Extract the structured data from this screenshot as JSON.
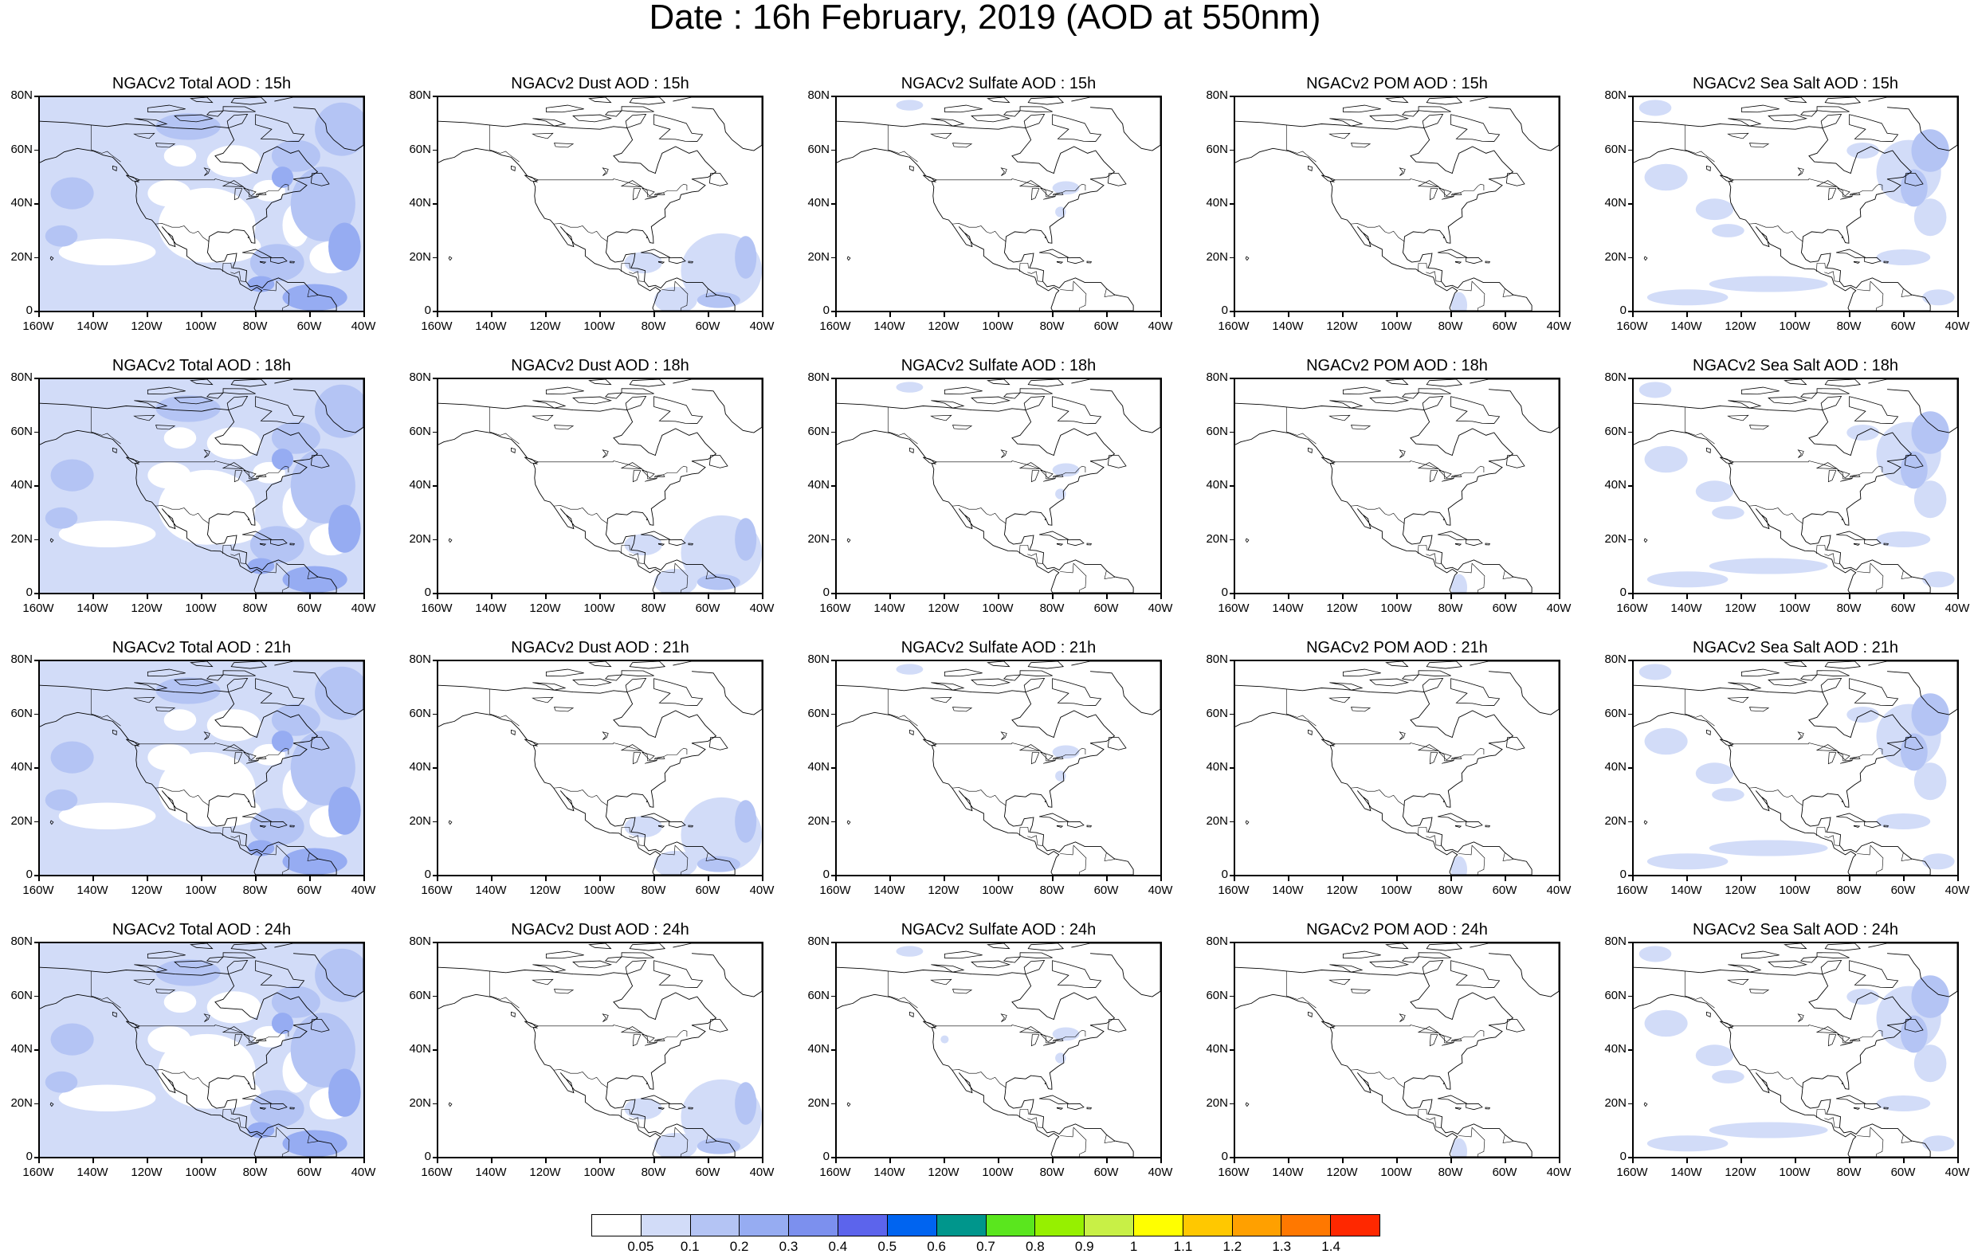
{
  "title": "Date : 16h February, 2019 (AOD at 550nm)",
  "rows": [
    {
      "panels": [
        {
          "title": "NGACv2 Total AOD : 15h",
          "species": "total"
        },
        {
          "title": "NGACv2 Dust AOD : 15h",
          "species": "dust"
        },
        {
          "title": "NGACv2 Sulfate AOD : 15h",
          "species": "sulfate"
        },
        {
          "title": "NGACv2 POM AOD : 15h",
          "species": "pom"
        },
        {
          "title": "NGACv2 Sea Salt AOD : 15h",
          "species": "seasalt"
        }
      ]
    },
    {
      "panels": [
        {
          "title": "NGACv2 Total AOD : 18h",
          "species": "total"
        },
        {
          "title": "NGACv2 Dust AOD : 18h",
          "species": "dust"
        },
        {
          "title": "NGACv2 Sulfate AOD : 18h",
          "species": "sulfate"
        },
        {
          "title": "NGACv2 POM AOD : 18h",
          "species": "pom"
        },
        {
          "title": "NGACv2 Sea Salt AOD : 18h",
          "species": "seasalt"
        }
      ]
    },
    {
      "panels": [
        {
          "title": "NGACv2 Total AOD : 21h",
          "species": "total"
        },
        {
          "title": "NGACv2 Dust AOD : 21h",
          "species": "dust"
        },
        {
          "title": "NGACv2 Sulfate AOD : 21h",
          "species": "sulfate"
        },
        {
          "title": "NGACv2 POM AOD : 21h",
          "species": "pom"
        },
        {
          "title": "NGACv2 Sea Salt AOD : 21h",
          "species": "seasalt"
        }
      ]
    },
    {
      "panels": [
        {
          "title": "NGACv2 Total AOD : 24h",
          "species": "total"
        },
        {
          "title": "NGACv2 Dust AOD : 24h",
          "species": "dust"
        },
        {
          "title": "NGACv2 Sulfate AOD : 24h",
          "species": "sulfate"
        },
        {
          "title": "NGACv2 POM AOD : 24h",
          "species": "pom"
        },
        {
          "title": "NGACv2 Sea Salt  AOD : 24h",
          "species": "seasalt"
        }
      ]
    }
  ],
  "lat_labels": [
    "80N",
    "60N",
    "40N",
    "20N",
    "0"
  ],
  "lon_labels": [
    "160W",
    "140W",
    "120W",
    "100W",
    "80W",
    "60W",
    "40W"
  ],
  "colorbar": {
    "labels": [
      "0.05",
      "0.1",
      "0.2",
      "0.3",
      "0.4",
      "0.5",
      "0.6",
      "0.7",
      "0.8",
      "0.9",
      "1",
      "1.1",
      "1.2",
      "1.3",
      "1.4"
    ],
    "colors": [
      "#ffffff",
      "#d2dcf8",
      "#b4c4f4",
      "#96acf2",
      "#7c90ee",
      "#5c64ec",
      "#0064f0",
      "#00968c",
      "#5ae61e",
      "#96f000",
      "#c8f046",
      "#ffff00",
      "#ffc800",
      "#ffa000",
      "#ff7800",
      "#ff2800"
    ]
  },
  "aod_fill_colors": {
    "low": "#d2dcf8",
    "medium": "#b4c4f4",
    "high": "#96acf2"
  }
}
